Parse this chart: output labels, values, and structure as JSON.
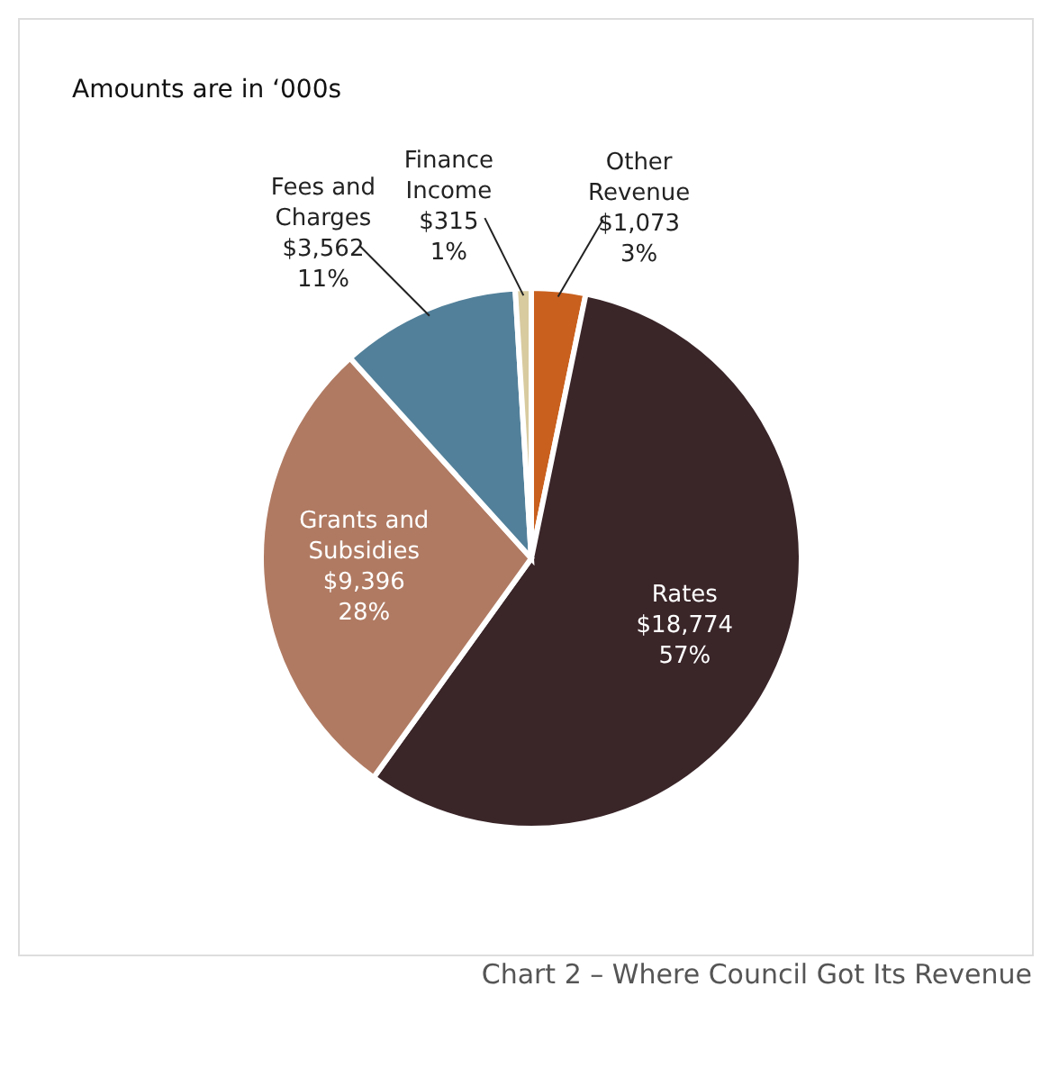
{
  "chart_data": {
    "type": "pie",
    "title": "Chart 2 – Where Council Got Its Revenue",
    "subtitle": "Amounts are in ‘000s",
    "categories": [
      "Other Revenue",
      "Rates",
      "Grants and Subsidies",
      "Fees and Charges",
      "Finance Income"
    ],
    "values": [
      1073,
      18774,
      9396,
      3562,
      315
    ],
    "value_labels": [
      "$1,073\n3%",
      "$18,774\n57%",
      "$9,396\n28%",
      "$3,562\n11%",
      "$315\n1%"
    ],
    "colors": [
      "#c9601e",
      "#3a2529",
      "#b07a62",
      "#52809a",
      "#d8cba0"
    ],
    "legend": false
  }
}
